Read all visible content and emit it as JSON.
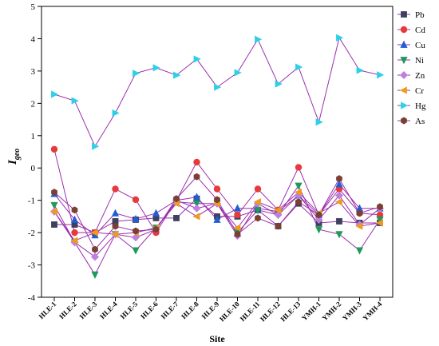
{
  "chart_data": {
    "type": "line",
    "xlabel": "Site",
    "ylabel_main": "I",
    "ylabel_sub": "geo",
    "ylim": [
      -4,
      5
    ],
    "yticks": [
      -4,
      -3,
      -2,
      -1,
      0,
      1,
      2,
      3,
      4,
      5
    ],
    "grid": false,
    "legend_position": "top-right",
    "line_color": "#9b2fae",
    "categories": [
      "HLE-1",
      "HLE-2",
      "HLE-3",
      "HLE-4",
      "HLE-5",
      "HLE-6",
      "HLE-7",
      "HLE-8",
      "HLE-9",
      "HLE-10",
      "HLE-11",
      "HLE-12",
      "HLE-13",
      "YMH-1",
      "YMH-2",
      "YMH-3",
      "YMH-4"
    ],
    "series": [
      {
        "name": "Pb",
        "color": "#3f3f5f",
        "marker": "square",
        "values": [
          -1.75,
          -1.75,
          -2.0,
          -1.65,
          -1.6,
          -1.55,
          -1.55,
          -0.95,
          -1.5,
          -1.5,
          -1.3,
          -1.8,
          -1.1,
          -1.7,
          -1.65,
          -1.7,
          -1.7
        ]
      },
      {
        "name": "Cd",
        "color": "#e8393c",
        "marker": "circle",
        "values": [
          0.58,
          -2.0,
          -2.0,
          -0.65,
          -0.98,
          -2.0,
          -1.0,
          0.18,
          -0.65,
          -1.45,
          -0.65,
          -1.3,
          0.02,
          -1.45,
          -0.65,
          -1.4,
          -1.45
        ]
      },
      {
        "name": "Cu",
        "color": "#1f5fd6",
        "marker": "triangle-up",
        "values": [
          -0.8,
          -1.6,
          -2.08,
          -1.4,
          -1.58,
          -1.4,
          -1.0,
          -0.9,
          -1.6,
          -1.25,
          -1.25,
          -1.35,
          -0.85,
          -1.45,
          -0.5,
          -1.25,
          -1.25
        ]
      },
      {
        "name": "Ni",
        "color": "#1f9a5a",
        "marker": "triangle-down",
        "values": [
          -1.15,
          -2.3,
          -3.3,
          -2.05,
          -2.55,
          -1.85,
          -1.05,
          -1.1,
          -1.1,
          -2.0,
          -1.3,
          -1.45,
          -0.55,
          -1.9,
          -2.05,
          -2.55,
          -1.6
        ]
      },
      {
        "name": "Zn",
        "color": "#c07fe0",
        "marker": "diamond",
        "values": [
          -1.35,
          -2.3,
          -2.75,
          -2.05,
          -2.15,
          -1.9,
          -1.0,
          -1.25,
          -1.1,
          -2.1,
          -1.1,
          -1.45,
          -0.85,
          -1.6,
          -0.85,
          -1.75,
          -1.25
        ]
      },
      {
        "name": "Cr",
        "color": "#ee9b1f",
        "marker": "triangle-left",
        "values": [
          -1.35,
          -2.25,
          -2.0,
          -2.05,
          -2.0,
          -1.85,
          -1.1,
          -1.5,
          -1.1,
          -1.85,
          -1.05,
          -1.3,
          -0.75,
          -1.4,
          -1.05,
          -1.8,
          -1.7
        ]
      },
      {
        "name": "Hg",
        "color": "#2ed0e8",
        "marker": "triangle-right",
        "values": [
          2.28,
          2.08,
          0.67,
          1.7,
          2.93,
          3.1,
          2.87,
          3.37,
          2.5,
          2.95,
          3.98,
          2.6,
          3.12,
          1.42,
          4.03,
          3.02,
          2.88
        ]
      },
      {
        "name": "As",
        "color": "#7a3f35",
        "marker": "hexagon",
        "values": [
          -0.75,
          -1.3,
          -2.52,
          -1.8,
          -1.95,
          -1.9,
          -0.95,
          -0.27,
          -0.98,
          -2.05,
          -1.55,
          -1.8,
          -1.05,
          -1.45,
          -0.33,
          -1.4,
          -1.2
        ]
      }
    ]
  }
}
